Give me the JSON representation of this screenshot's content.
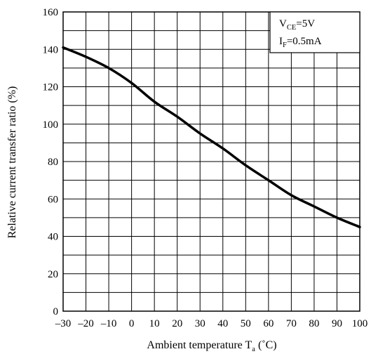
{
  "chart_data": {
    "type": "line",
    "xlabel": "Ambient temperature T",
    "xlabel_subscript": "a",
    "xlabel_unit": "(˚C)",
    "ylabel": "Relative current transfer ratio (%)",
    "xlim": [
      -30,
      100
    ],
    "ylim": [
      0,
      160
    ],
    "x_ticks": [
      -30,
      -20,
      -10,
      0,
      10,
      20,
      30,
      40,
      50,
      60,
      70,
      80,
      90,
      100
    ],
    "y_ticks": [
      0,
      20,
      40,
      60,
      80,
      100,
      120,
      140,
      160
    ],
    "x_tick_labels": [
      "–30",
      "–20",
      "–10",
      "0",
      "10",
      "20",
      "30",
      "40",
      "50",
      "60",
      "70",
      "80",
      "90",
      "100"
    ],
    "y_tick_labels": [
      "0",
      "20",
      "40",
      "60",
      "80",
      "100",
      "120",
      "140",
      "160"
    ],
    "grid": true,
    "minor_y_grid_step": 10,
    "legend_position": "top-right",
    "conditions": [
      {
        "main": "V",
        "sub": "CE",
        "rest": "=5V"
      },
      {
        "main": "I",
        "sub": "F",
        "rest": "=0.5mA"
      }
    ],
    "series": [
      {
        "x": [
          -30,
          -20,
          -10,
          0,
          10,
          20,
          30,
          40,
          50,
          60,
          70,
          80,
          90,
          100
        ],
        "y": [
          141,
          136,
          130,
          122,
          112,
          104,
          95,
          87,
          78,
          70,
          62,
          56,
          50,
          45
        ]
      }
    ],
    "line_color": "#000000"
  }
}
